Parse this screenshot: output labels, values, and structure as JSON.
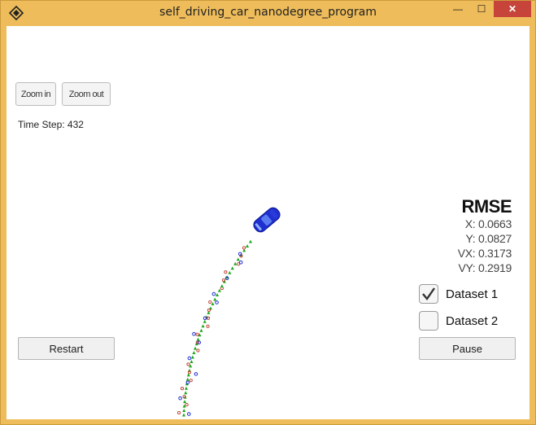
{
  "window": {
    "title": "self_driving_car_nanodegree_program",
    "minimize_glyph": "—",
    "maximize_glyph": "☐",
    "close_glyph": "✕",
    "app_icon": "unity-icon"
  },
  "controls": {
    "zoom_in_label": "Zoom in",
    "zoom_out_label": "Zoom out",
    "restart_label": "Restart",
    "pause_label": "Pause"
  },
  "status": {
    "time_step_text": "Time Step: 432"
  },
  "rmse": {
    "title": "RMSE",
    "x": "X: 0.0663",
    "y": "Y: 0.0827",
    "vx": "VX: 0.3173",
    "vy": "VY: 0.2919"
  },
  "datasets": [
    {
      "label": "Dataset 1",
      "checked": true
    },
    {
      "label": "Dataset 2",
      "checked": false
    }
  ],
  "colors": {
    "car": "#1f2fd0",
    "estimate_marker": "#1aa81a",
    "lidar_marker": "#c0392b",
    "radar_marker": "#1f2fd0",
    "window_frame": "#eebc5a",
    "close_button": "#c7443a"
  }
}
